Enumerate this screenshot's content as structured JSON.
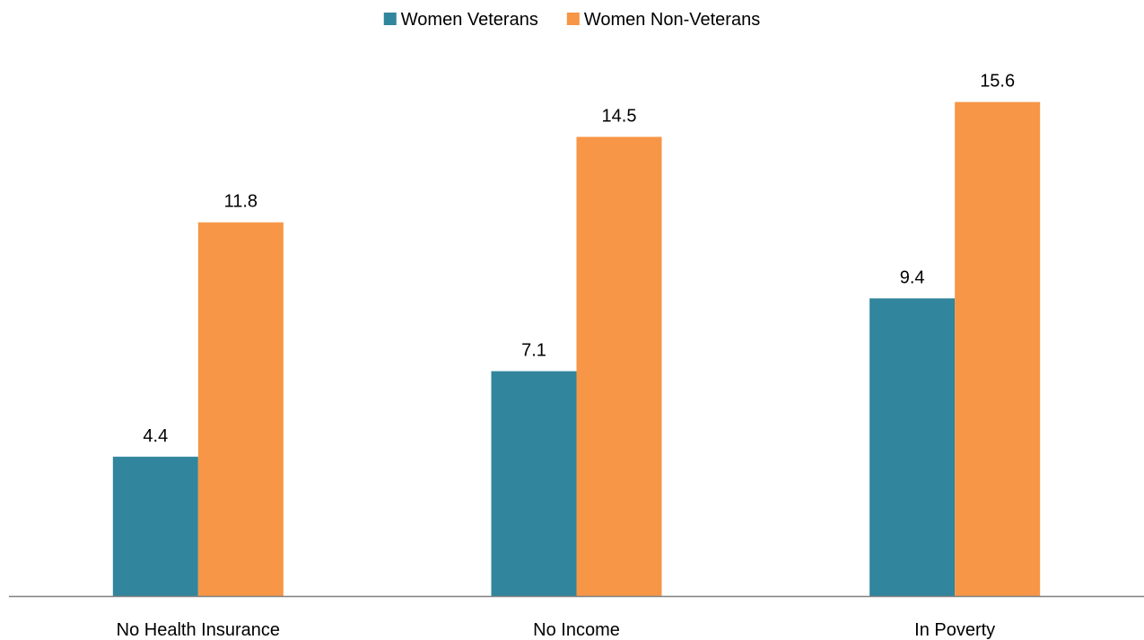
{
  "chart_data": {
    "type": "bar",
    "title": "",
    "xlabel": "",
    "ylabel": "",
    "categories": [
      "No Health Insurance",
      "No Income",
      "In Poverty"
    ],
    "series": [
      {
        "name": "Women Veterans",
        "color": "#31859c",
        "values": [
          4.4,
          7.1,
          9.4
        ]
      },
      {
        "name": "Women Non-Veterans",
        "color": "#f79646",
        "values": [
          11.8,
          14.5,
          15.6
        ]
      }
    ],
    "ylim": [
      0,
      18
    ],
    "grid": false,
    "legend_position": "top",
    "axis_color": "#808080"
  }
}
